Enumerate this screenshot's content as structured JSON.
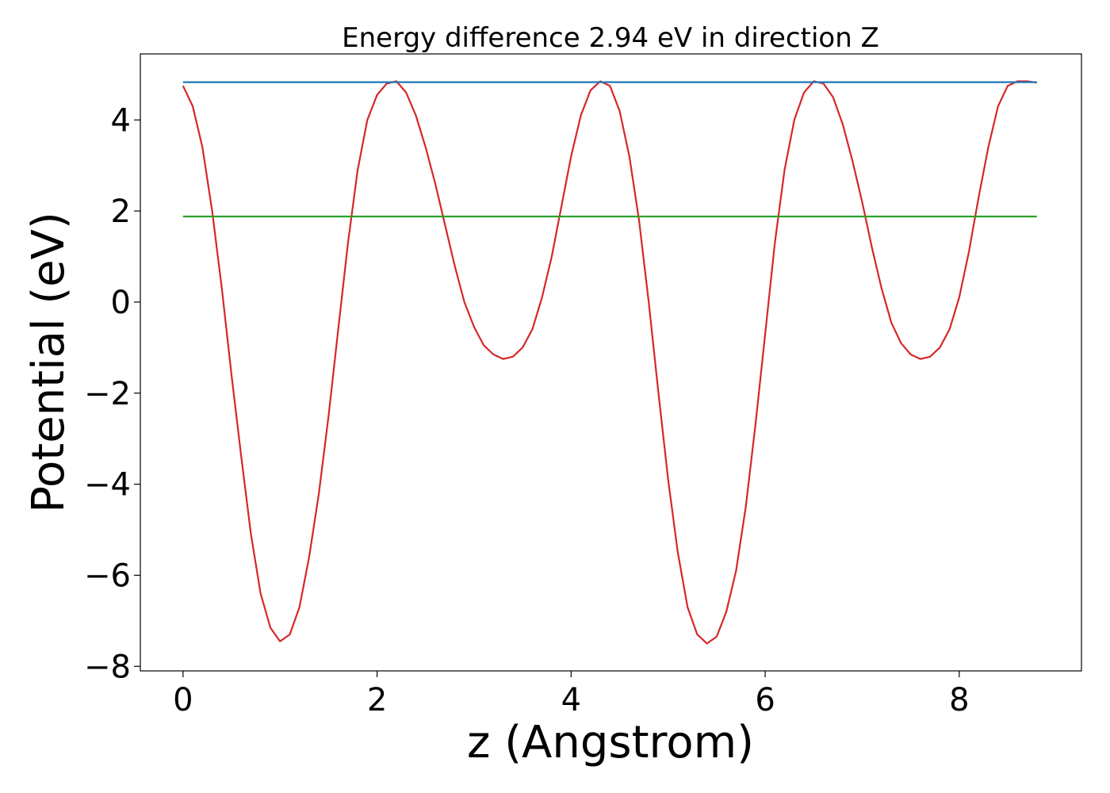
{
  "chart_data": {
    "type": "line",
    "title": "Energy difference 2.94 eV in direction Z",
    "xlabel": "z (Angstrom)",
    "ylabel": "Potential (eV)",
    "xlim": [
      -0.44,
      9.26
    ],
    "ylim": [
      -8.1,
      5.45
    ],
    "xticks": [
      0,
      2,
      4,
      6,
      8
    ],
    "yticks": [
      -8,
      -6,
      -4,
      -2,
      0,
      2,
      4
    ],
    "ytick_labels": [
      "−8",
      "−6",
      "−4",
      "−2",
      "0",
      "2",
      "4"
    ],
    "grid": false,
    "series": [
      {
        "color": "#d62728",
        "x": [
          0,
          0.1,
          0.2,
          0.3,
          0.4,
          0.5,
          0.6,
          0.7,
          0.8,
          0.9,
          1.0,
          1.1,
          1.2,
          1.3,
          1.4,
          1.5,
          1.6,
          1.7,
          1.8,
          1.9,
          2.0,
          2.1,
          2.2,
          2.3,
          2.4,
          2.5,
          2.6,
          2.7,
          2.8,
          2.9,
          3.0,
          3.1,
          3.2,
          3.3,
          3.4,
          3.5,
          3.6,
          3.7,
          3.8,
          3.9,
          4.0,
          4.1,
          4.2,
          4.3,
          4.4,
          4.5,
          4.6,
          4.7,
          4.8,
          4.9,
          5.0,
          5.1,
          5.2,
          5.3,
          5.4,
          5.5,
          5.6,
          5.7,
          5.8,
          5.9,
          6.0,
          6.1,
          6.2,
          6.3,
          6.4,
          6.5,
          6.6,
          6.7,
          6.8,
          6.9,
          7.0,
          7.1,
          7.2,
          7.3,
          7.4,
          7.5,
          7.6,
          7.7,
          7.8,
          7.9,
          8.0,
          8.1,
          8.2,
          8.3,
          8.4,
          8.5,
          8.6,
          8.7,
          8.8
        ],
        "y": [
          4.75,
          4.3,
          3.4,
          2.0,
          0.3,
          -1.6,
          -3.4,
          -5.1,
          -6.4,
          -7.15,
          -7.45,
          -7.3,
          -6.7,
          -5.6,
          -4.2,
          -2.5,
          -0.6,
          1.3,
          2.9,
          4.0,
          4.55,
          4.8,
          4.85,
          4.6,
          4.1,
          3.4,
          2.6,
          1.7,
          0.8,
          0.0,
          -0.55,
          -0.95,
          -1.15,
          -1.25,
          -1.2,
          -1.0,
          -0.6,
          0.1,
          1.0,
          2.1,
          3.2,
          4.1,
          4.65,
          4.85,
          4.75,
          4.2,
          3.2,
          1.8,
          0.0,
          -2.0,
          -3.9,
          -5.5,
          -6.7,
          -7.3,
          -7.5,
          -7.35,
          -6.8,
          -5.9,
          -4.5,
          -2.7,
          -0.7,
          1.3,
          2.9,
          4.0,
          4.6,
          4.85,
          4.8,
          4.5,
          3.9,
          3.1,
          2.2,
          1.2,
          0.3,
          -0.45,
          -0.9,
          -1.15,
          -1.25,
          -1.2,
          -1.0,
          -0.6,
          0.1,
          1.1,
          2.3,
          3.4,
          4.3,
          4.75,
          4.85,
          4.85,
          4.82
        ]
      },
      {
        "color": "#1f77b4",
        "x": [
          0,
          8.8
        ],
        "y": [
          4.83,
          4.83
        ]
      },
      {
        "color": "#2ca02c",
        "x": [
          0,
          8.8
        ],
        "y": [
          1.88,
          1.88
        ]
      }
    ]
  }
}
